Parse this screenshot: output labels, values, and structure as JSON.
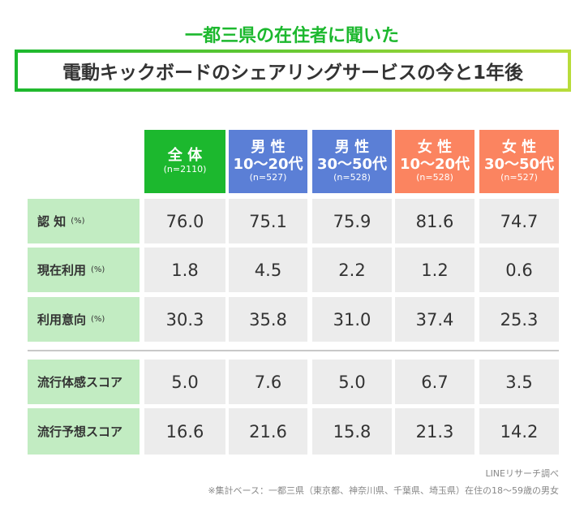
{
  "subtitle": "一都三県の在住者に聞いた",
  "title": "電動キックボードのシェアリングサービスの今と1年後",
  "columns": [
    {
      "line1": "全 体",
      "line2": "",
      "n": "(n=2110)",
      "color": "#1cb82e"
    },
    {
      "line1": "男 性",
      "line2": "10〜20代",
      "n": "(n=527)",
      "color": "#5b7fd6"
    },
    {
      "line1": "男 性",
      "line2": "30〜50代",
      "n": "(n=528)",
      "color": "#5b7fd6"
    },
    {
      "line1": "女 性",
      "line2": "10〜20代",
      "n": "(n=528)",
      "color": "#fb8460"
    },
    {
      "line1": "女 性",
      "line2": "30〜50代",
      "n": "(n=527)",
      "color": "#fb8460"
    }
  ],
  "rows": [
    {
      "label": "認 知",
      "unit": "(%)",
      "values": [
        "76.0",
        "75.1",
        "75.9",
        "81.6",
        "74.7"
      ]
    },
    {
      "label": "現在利用",
      "unit": "(%)",
      "values": [
        "1.8",
        "4.5",
        "2.2",
        "1.2",
        "0.6"
      ]
    },
    {
      "label": "利用意向",
      "unit": "(%)",
      "values": [
        "30.3",
        "35.8",
        "31.0",
        "37.4",
        "25.3"
      ]
    },
    {
      "label": "流行体感スコア",
      "unit": "",
      "values": [
        "5.0",
        "7.6",
        "5.0",
        "6.7",
        "3.5"
      ]
    },
    {
      "label": "流行予想スコア",
      "unit": "",
      "values": [
        "16.6",
        "21.6",
        "15.8",
        "21.3",
        "14.2"
      ]
    }
  ],
  "footer": {
    "source": "LINEリサーチ調べ",
    "note": "※集計ベース：一都三県（東京都、神奈川県、千葉県、埼玉県）在住の18〜59歳の男女"
  }
}
